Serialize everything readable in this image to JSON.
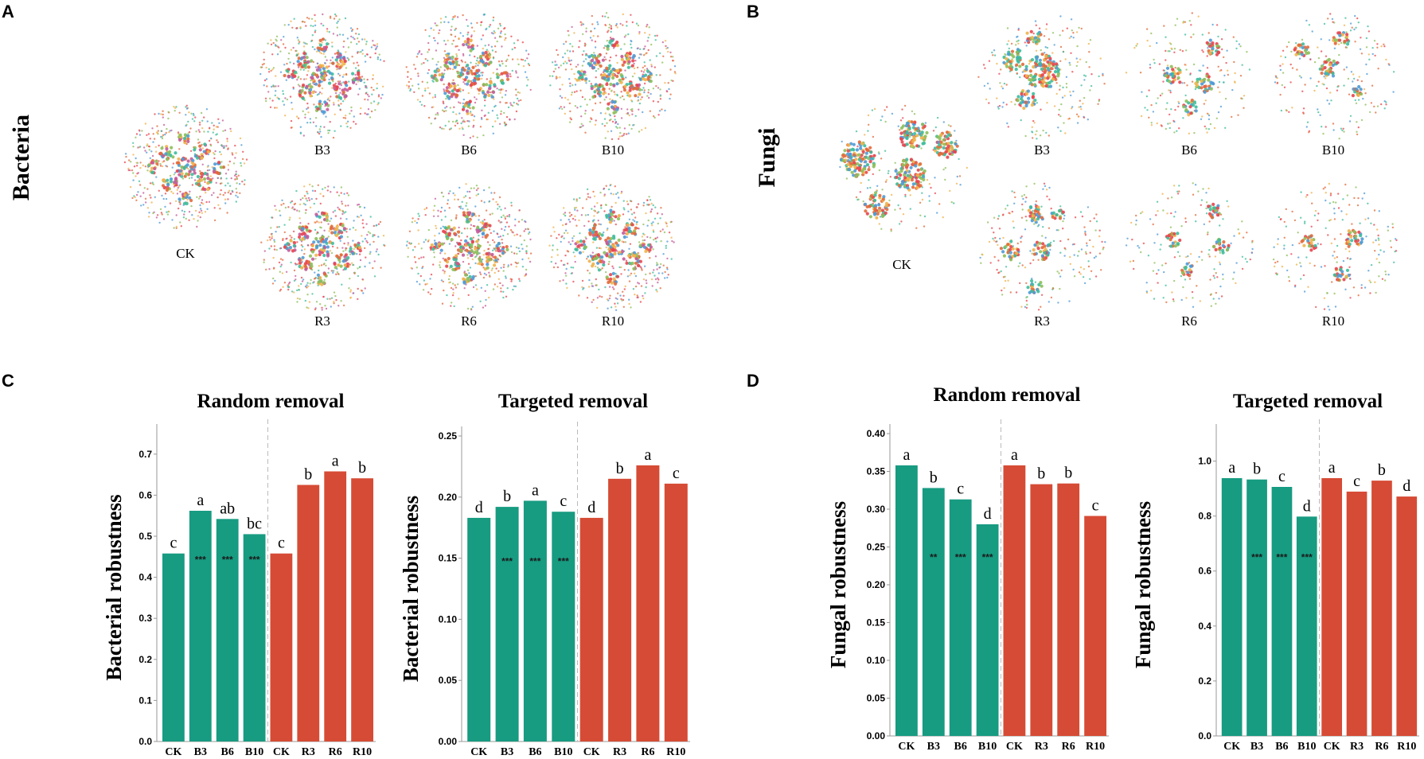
{
  "panels": {
    "A": {
      "letter": "A",
      "row_label": "Bacteria",
      "networks": [
        "CK",
        "B3",
        "B6",
        "B10",
        "R3",
        "R6",
        "R10"
      ]
    },
    "B": {
      "letter": "B",
      "row_label": "Fungi",
      "networks": [
        "CK",
        "B3",
        "B6",
        "B10",
        "R3",
        "R6",
        "R10"
      ]
    },
    "C": {
      "letter": "C"
    },
    "D": {
      "letter": "D"
    }
  },
  "colors": {
    "bio": "#179b81",
    "ref": "#d64b35",
    "node_palette": [
      "#e26a3b",
      "#8dbf5a",
      "#f0b24a",
      "#4f9ad6",
      "#c45b9a",
      "#3dbd9c",
      "#e8454f"
    ]
  },
  "chart_data": [
    {
      "id": "C1",
      "type": "bar",
      "title": "Random removal",
      "ylabel": "Bacterial robustness",
      "categories": [
        "CK",
        "B3",
        "B6",
        "B10",
        "CK",
        "R3",
        "R6",
        "R10"
      ],
      "values": [
        0.458,
        0.562,
        0.542,
        0.505,
        0.458,
        0.625,
        0.658,
        0.641
      ],
      "letters": [
        "c",
        "a",
        "ab",
        "bc",
        "c",
        "b",
        "a",
        "b"
      ],
      "stars": [
        "",
        "***",
        "***",
        "***",
        "",
        "",
        "",
        ""
      ],
      "ylim": [
        0,
        0.75
      ],
      "ticks": [
        "0.0",
        "0.1",
        "0.2",
        "0.3",
        "0.4",
        "0.5",
        "0.6",
        "0.7"
      ]
    },
    {
      "id": "C2",
      "type": "bar",
      "title": "Targeted removal",
      "ylabel": "Bacterial robustness",
      "categories": [
        "CK",
        "B3",
        "B6",
        "B10",
        "CK",
        "R3",
        "R6",
        "R10"
      ],
      "values": [
        0.183,
        0.192,
        0.197,
        0.188,
        0.183,
        0.215,
        0.226,
        0.211
      ],
      "letters": [
        "d",
        "b",
        "a",
        "c",
        "d",
        "b",
        "a",
        "c"
      ],
      "stars": [
        "",
        "***",
        "***",
        "***",
        "",
        "",
        "",
        ""
      ],
      "ylim": [
        0,
        0.25
      ],
      "ticks": [
        "0.00",
        "0.05",
        "0.10",
        "0.15",
        "0.20",
        "0.25"
      ]
    },
    {
      "id": "D1",
      "type": "bar",
      "title": "Random removal",
      "ylabel": "Fungal robustness",
      "categories": [
        "CK",
        "B3",
        "B6",
        "B10",
        "CK",
        "R3",
        "R6",
        "R10"
      ],
      "values": [
        0.358,
        0.328,
        0.313,
        0.28,
        0.358,
        0.333,
        0.334,
        0.291
      ],
      "letters": [
        "a",
        "b",
        "c",
        "d",
        "a",
        "b",
        "b",
        "c"
      ],
      "stars": [
        "",
        "**",
        "***",
        "***",
        "",
        "",
        "",
        ""
      ],
      "ylim": [
        0,
        0.4
      ],
      "ticks": [
        "0.00",
        "0.05",
        "0.10",
        "0.15",
        "0.20",
        "0.25",
        "0.30",
        "0.35",
        "0.40"
      ]
    },
    {
      "id": "D2",
      "type": "bar",
      "title": "Targeted removal",
      "ylabel": "Fungal robustness",
      "categories": [
        "CK",
        "B3",
        "B6",
        "B10",
        "CK",
        "R3",
        "R6",
        "R10"
      ],
      "values": [
        0.938,
        0.933,
        0.906,
        0.798,
        0.938,
        0.889,
        0.929,
        0.871
      ],
      "letters": [
        "a",
        "b",
        "c",
        "d",
        "a",
        "c",
        "b",
        "d"
      ],
      "stars": [
        "",
        "***",
        "***",
        "***",
        "",
        "",
        "",
        ""
      ],
      "ylim": [
        0,
        1.1
      ],
      "ticks": [
        "0.0",
        "0.2",
        "0.4",
        "0.6",
        "0.8",
        "1.0"
      ]
    }
  ]
}
